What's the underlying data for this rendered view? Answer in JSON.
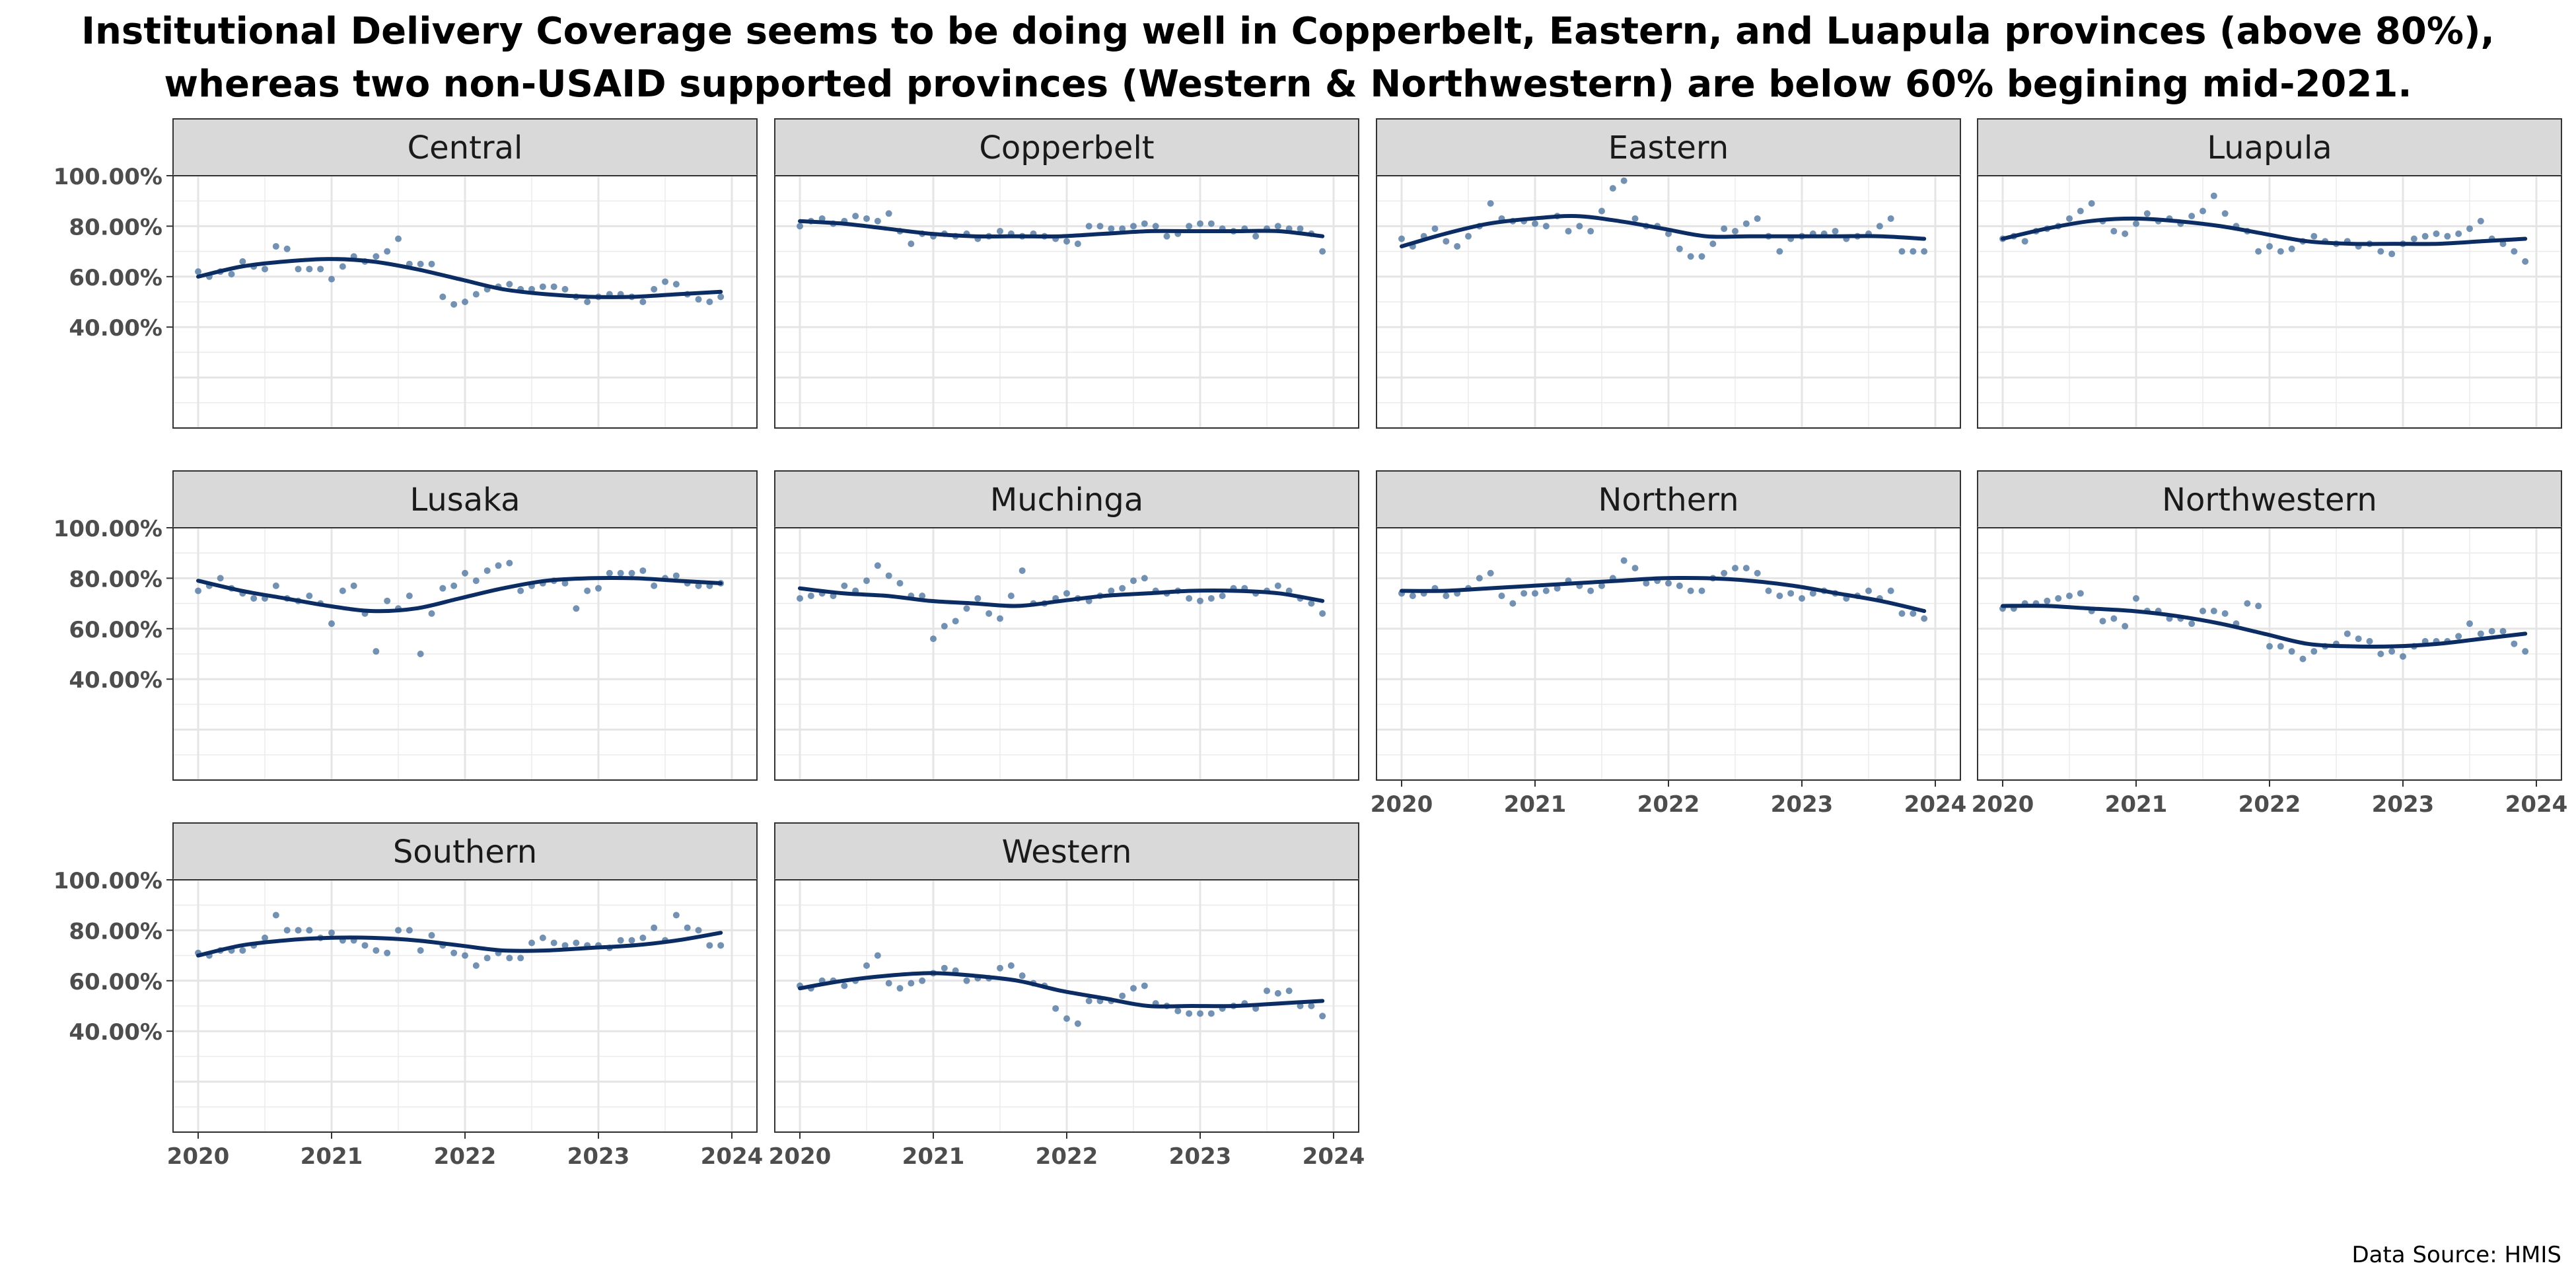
{
  "title_lines": [
    "Institutional Delivery Coverage seems to be doing well in Copperbelt, Eastern, and Luapula provinces (above 80%),",
    "whereas two non-USAID supported provinces (Western & Northwestern) are below 60% begining mid-2021."
  ],
  "caption": "Data Source: HMIS",
  "chart_data": {
    "type": "scatter",
    "facet_by": "province",
    "x_ticks": [
      "2020",
      "2021",
      "2022",
      "2023",
      "2024"
    ],
    "xlim": [
      "2020-01",
      "2024-01"
    ],
    "y_ticks": [
      "40.00%",
      "60.00%",
      "80.00%",
      "100.00%"
    ],
    "ylim": [
      0.0,
      1.0
    ],
    "grid": true,
    "smooth_line": true,
    "colors": {
      "points": "#5b7fa6",
      "smooth": "#0b2d64",
      "strip": "#d9d9d9",
      "grid": "#ebebeb"
    },
    "months_start": "2020-01",
    "panels": [
      {
        "province": "Central",
        "values": [
          0.62,
          0.6,
          0.62,
          0.61,
          0.66,
          0.64,
          0.63,
          0.72,
          0.71,
          0.63,
          0.63,
          0.63,
          0.59,
          0.64,
          0.68,
          0.66,
          0.68,
          0.7,
          0.75,
          0.65,
          0.65,
          0.65,
          0.52,
          0.49,
          0.5,
          0.53,
          0.55,
          0.56,
          0.57,
          0.55,
          0.55,
          0.56,
          0.56,
          0.55,
          0.52,
          0.5,
          0.52,
          0.53,
          0.53,
          0.52,
          0.5,
          0.55,
          0.58,
          0.57,
          0.53,
          0.51,
          0.5,
          0.52
        ],
        "smooth": [
          0.6,
          0.64,
          0.66,
          0.67,
          0.66,
          0.63,
          0.59,
          0.55,
          0.53,
          0.52,
          0.52,
          0.53,
          0.54
        ]
      },
      {
        "province": "Copperbelt",
        "values": [
          0.8,
          0.82,
          0.83,
          0.81,
          0.82,
          0.84,
          0.83,
          0.82,
          0.85,
          0.78,
          0.73,
          0.77,
          0.76,
          0.77,
          0.76,
          0.77,
          0.75,
          0.76,
          0.78,
          0.77,
          0.76,
          0.77,
          0.76,
          0.75,
          0.74,
          0.73,
          0.8,
          0.8,
          0.79,
          0.79,
          0.8,
          0.81,
          0.8,
          0.76,
          0.77,
          0.8,
          0.81,
          0.81,
          0.79,
          0.78,
          0.79,
          0.76,
          0.79,
          0.8,
          0.79,
          0.79,
          0.77,
          0.7
        ],
        "smooth": [
          0.82,
          0.81,
          0.79,
          0.77,
          0.76,
          0.76,
          0.76,
          0.77,
          0.78,
          0.78,
          0.78,
          0.78,
          0.76
        ]
      },
      {
        "province": "Eastern",
        "values": [
          0.75,
          0.72,
          0.76,
          0.79,
          0.74,
          0.72,
          0.76,
          0.8,
          0.89,
          0.83,
          0.82,
          0.82,
          0.81,
          0.8,
          0.84,
          0.78,
          0.8,
          0.78,
          0.86,
          0.95,
          0.98,
          0.83,
          0.8,
          0.8,
          0.77,
          0.71,
          0.68,
          0.68,
          0.73,
          0.79,
          0.78,
          0.81,
          0.83,
          0.76,
          0.7,
          0.75,
          0.76,
          0.77,
          0.77,
          0.78,
          0.75,
          0.76,
          0.77,
          0.8,
          0.83,
          0.7,
          0.7,
          0.7
        ],
        "smooth": [
          0.72,
          0.77,
          0.81,
          0.83,
          0.84,
          0.82,
          0.79,
          0.76,
          0.76,
          0.76,
          0.76,
          0.76,
          0.75
        ]
      },
      {
        "province": "Luapula",
        "values": [
          0.75,
          0.76,
          0.74,
          0.78,
          0.79,
          0.8,
          0.83,
          0.86,
          0.89,
          0.82,
          0.78,
          0.77,
          0.81,
          0.85,
          0.82,
          0.83,
          0.81,
          0.84,
          0.86,
          0.92,
          0.85,
          0.8,
          0.78,
          0.7,
          0.72,
          0.7,
          0.71,
          0.74,
          0.76,
          0.74,
          0.73,
          0.74,
          0.72,
          0.73,
          0.7,
          0.69,
          0.73,
          0.75,
          0.76,
          0.77,
          0.76,
          0.77,
          0.79,
          0.82,
          0.75,
          0.73,
          0.7,
          0.66
        ],
        "smooth": [
          0.75,
          0.79,
          0.82,
          0.83,
          0.82,
          0.8,
          0.77,
          0.74,
          0.73,
          0.73,
          0.73,
          0.74,
          0.75
        ]
      },
      {
        "province": "Lusaka",
        "values": [
          0.75,
          0.77,
          0.8,
          0.76,
          0.74,
          0.72,
          0.72,
          0.77,
          0.72,
          0.71,
          0.73,
          0.7,
          0.62,
          0.75,
          0.77,
          0.66,
          0.51,
          0.71,
          0.68,
          0.73,
          0.5,
          0.66,
          0.76,
          0.77,
          0.82,
          0.79,
          0.83,
          0.85,
          0.86,
          0.75,
          0.77,
          0.78,
          0.79,
          0.78,
          0.68,
          0.75,
          0.76,
          0.82,
          0.82,
          0.82,
          0.83,
          0.77,
          0.8,
          0.81,
          0.78,
          0.77,
          0.77,
          0.78
        ],
        "smooth": [
          0.79,
          0.75,
          0.72,
          0.69,
          0.67,
          0.68,
          0.72,
          0.76,
          0.79,
          0.8,
          0.8,
          0.79,
          0.78
        ]
      },
      {
        "province": "Muchinga",
        "values": [
          0.72,
          0.73,
          0.74,
          0.73,
          0.77,
          0.75,
          0.79,
          0.85,
          0.81,
          0.78,
          0.73,
          0.73,
          0.56,
          0.61,
          0.63,
          0.68,
          0.72,
          0.66,
          0.64,
          0.73,
          0.83,
          0.7,
          0.7,
          0.72,
          0.74,
          0.72,
          0.71,
          0.73,
          0.75,
          0.76,
          0.79,
          0.8,
          0.75,
          0.74,
          0.75,
          0.72,
          0.71,
          0.72,
          0.73,
          0.76,
          0.76,
          0.74,
          0.75,
          0.77,
          0.75,
          0.72,
          0.7,
          0.66
        ],
        "smooth": [
          0.76,
          0.74,
          0.73,
          0.71,
          0.7,
          0.69,
          0.71,
          0.73,
          0.74,
          0.75,
          0.75,
          0.74,
          0.71
        ]
      },
      {
        "province": "Northern",
        "values": [
          0.74,
          0.73,
          0.74,
          0.76,
          0.73,
          0.74,
          0.76,
          0.8,
          0.82,
          0.73,
          0.7,
          0.74,
          0.74,
          0.75,
          0.76,
          0.79,
          0.77,
          0.75,
          0.77,
          0.8,
          0.87,
          0.84,
          0.78,
          0.79,
          0.78,
          0.77,
          0.75,
          0.75,
          0.8,
          0.82,
          0.84,
          0.84,
          0.82,
          0.75,
          0.73,
          0.74,
          0.72,
          0.74,
          0.75,
          0.74,
          0.72,
          0.73,
          0.75,
          0.72,
          0.75,
          0.66,
          0.66,
          0.64
        ],
        "smooth": [
          0.75,
          0.75,
          0.76,
          0.77,
          0.78,
          0.79,
          0.8,
          0.8,
          0.79,
          0.77,
          0.74,
          0.71,
          0.67
        ]
      },
      {
        "province": "Northwestern",
        "values": [
          0.68,
          0.68,
          0.7,
          0.7,
          0.71,
          0.72,
          0.73,
          0.74,
          0.67,
          0.63,
          0.64,
          0.61,
          0.72,
          0.67,
          0.67,
          0.64,
          0.64,
          0.62,
          0.67,
          0.67,
          0.66,
          0.62,
          0.7,
          0.69,
          0.53,
          0.53,
          0.51,
          0.48,
          0.51,
          0.53,
          0.54,
          0.58,
          0.56,
          0.55,
          0.5,
          0.51,
          0.49,
          0.53,
          0.55,
          0.55,
          0.55,
          0.57,
          0.62,
          0.58,
          0.59,
          0.59,
          0.54,
          0.51
        ],
        "smooth": [
          0.69,
          0.69,
          0.68,
          0.67,
          0.65,
          0.62,
          0.58,
          0.54,
          0.53,
          0.53,
          0.54,
          0.56,
          0.58
        ]
      },
      {
        "province": "Southern",
        "values": [
          0.71,
          0.7,
          0.72,
          0.72,
          0.72,
          0.74,
          0.77,
          0.86,
          0.8,
          0.8,
          0.8,
          0.77,
          0.79,
          0.76,
          0.76,
          0.74,
          0.72,
          0.71,
          0.8,
          0.8,
          0.72,
          0.78,
          0.74,
          0.71,
          0.7,
          0.66,
          0.69,
          0.71,
          0.69,
          0.69,
          0.75,
          0.77,
          0.75,
          0.74,
          0.75,
          0.74,
          0.74,
          0.73,
          0.76,
          0.76,
          0.77,
          0.81,
          0.76,
          0.86,
          0.81,
          0.8,
          0.74,
          0.74
        ],
        "smooth": [
          0.7,
          0.74,
          0.76,
          0.77,
          0.77,
          0.76,
          0.74,
          0.72,
          0.72,
          0.73,
          0.74,
          0.76,
          0.79
        ]
      },
      {
        "province": "Western",
        "values": [
          0.58,
          0.57,
          0.6,
          0.6,
          0.58,
          0.6,
          0.66,
          0.7,
          0.59,
          0.57,
          0.59,
          0.6,
          0.63,
          0.65,
          0.64,
          0.6,
          0.61,
          0.61,
          0.65,
          0.66,
          0.62,
          0.59,
          0.58,
          0.49,
          0.45,
          0.43,
          0.52,
          0.52,
          0.52,
          0.54,
          0.57,
          0.58,
          0.51,
          0.5,
          0.48,
          0.47,
          0.47,
          0.47,
          0.49,
          0.5,
          0.51,
          0.49,
          0.56,
          0.55,
          0.56,
          0.5,
          0.5,
          0.46
        ],
        "smooth": [
          0.57,
          0.6,
          0.62,
          0.63,
          0.62,
          0.6,
          0.56,
          0.53,
          0.5,
          0.5,
          0.5,
          0.51,
          0.52
        ]
      }
    ]
  }
}
